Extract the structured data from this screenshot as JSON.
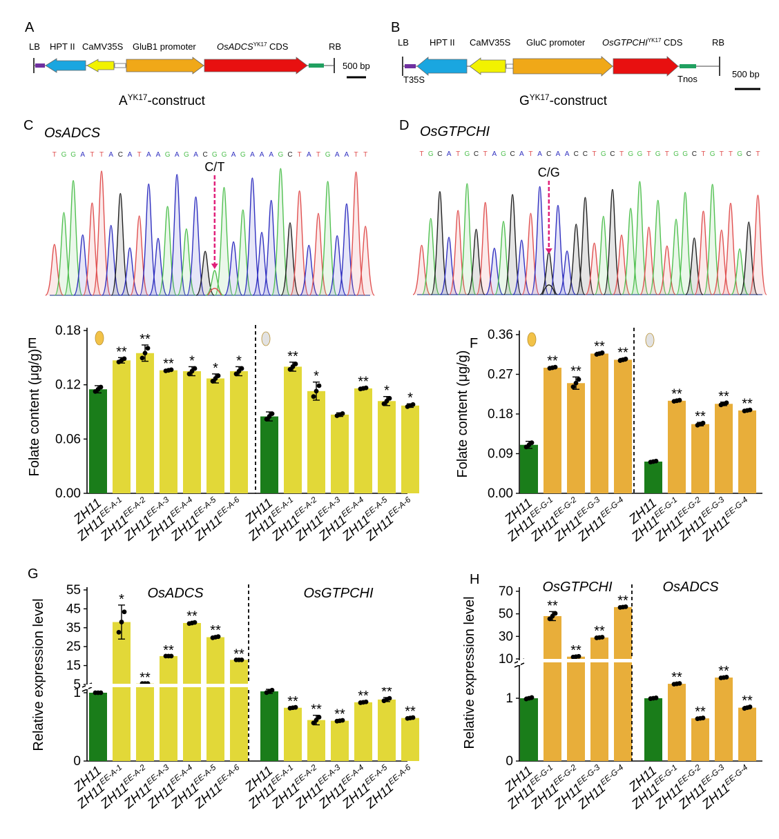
{
  "colors": {
    "ctrl": "#1a7d1a",
    "yellowBar": "#e2d838",
    "orangeBar": "#e8ae3a",
    "hpt": "#1aa6e0",
    "camv": "#f2f200",
    "promoter": "#f0a818",
    "cds": "#e81010",
    "lbStub": "#7030a0",
    "rbStub": "#20a060",
    "traceG": "#50c050",
    "traceA": "#3030c0",
    "traceT": "#e05050",
    "traceC": "#202020",
    "arrow": "#e0207a"
  },
  "panels": {
    "A": {
      "letter": "A",
      "labels": [
        "LB",
        "HPT II",
        "CaMV35S",
        "GluB1 promoter",
        "OsADCS",
        "YK17",
        "CDS",
        "RB"
      ],
      "scale": "500 bp",
      "title_prefix": "A",
      "title_sup": "YK17",
      "title_suffix": "-construct"
    },
    "B": {
      "letter": "B",
      "labels": [
        "LB",
        "HPT II",
        "CaMV35S",
        "GluC promoter",
        "OsGTPCHI",
        "YK17",
        "CDS",
        "RB",
        "T35S",
        "Tnos"
      ],
      "scale": "500 bp",
      "title_prefix": "G",
      "title_sup": "YK17",
      "title_suffix": "-construct"
    },
    "C": {
      "letter": "C",
      "gene": "OsADCS",
      "sequence": "TGGATTACATAAGAGACGGAGAAAGCTATGAATT",
      "mutation": "C/T"
    },
    "D": {
      "letter": "D",
      "gene": "OsGTPCHI",
      "sequence": "TGCATGCTAGCATACAACCTGCTGGTGTGGCTGTTGCT",
      "mutation": "C/G"
    },
    "E": {
      "letter": "E"
    },
    "F": {
      "letter": "F"
    },
    "G": {
      "letter": "G"
    },
    "H": {
      "letter": "H"
    }
  },
  "chart_data": [
    {
      "panel": "E",
      "type": "bar",
      "ylabel": "Folate content (μg/g)",
      "ylim": [
        0,
        0.18
      ],
      "yticks": [
        "0.00",
        "0.06",
        "0.12",
        "0.18"
      ],
      "groups": [
        {
          "categories": [
            "ZH11",
            "ZH11|EE-A-1",
            "ZH11|EE-A-2",
            "ZH11|EE-A-3",
            "ZH11|EE-A-4",
            "ZH11|EE-A-5",
            "ZH11|EE-A-6"
          ],
          "values": [
            0.115,
            0.147,
            0.155,
            0.136,
            0.135,
            0.127,
            0.135
          ],
          "errors": [
            0.004,
            0.003,
            0.009,
            0.001,
            0.005,
            0.005,
            0.005
          ],
          "significance": [
            "",
            "**",
            "**",
            "**",
            "*",
            "*",
            "*"
          ]
        },
        {
          "categories": [
            "ZH11",
            "ZH11|EE-A-1",
            "ZH11|EE-A-2",
            "ZH11|EE-A-3",
            "ZH11|EE-A-4",
            "ZH11|EE-A-5",
            "ZH11|EE-A-6"
          ],
          "values": [
            0.085,
            0.14,
            0.113,
            0.087,
            0.116,
            0.102,
            0.097
          ],
          "errors": [
            0.005,
            0.005,
            0.01,
            0.002,
            0.001,
            0.005,
            0.002
          ],
          "significance": [
            "",
            "**",
            "*",
            "",
            "**",
            "*",
            "*"
          ]
        }
      ]
    },
    {
      "panel": "F",
      "type": "bar",
      "ylabel": "Folate content (μg/g)",
      "ylim": [
        0,
        0.36
      ],
      "yticks": [
        "0.00",
        "0.09",
        "0.18",
        "0.27",
        "0.36"
      ],
      "groups": [
        {
          "categories": [
            "ZH11",
            "ZH11|EE-G-1",
            "ZH11|EE-G-2",
            "ZH11|EE-G-3",
            "ZH11|EE-G-4"
          ],
          "values": [
            0.11,
            0.285,
            0.25,
            0.317,
            0.303
          ],
          "errors": [
            0.008,
            0.002,
            0.014,
            0.003,
            0.003
          ],
          "significance": [
            "",
            "**",
            "**",
            "**",
            "**"
          ]
        },
        {
          "categories": [
            "ZH11",
            "ZH11|EE-G-1",
            "ZH11|EE-G-2",
            "ZH11|EE-G-3",
            "ZH11|EE-G-4"
          ],
          "values": [
            0.072,
            0.21,
            0.157,
            0.203,
            0.188
          ],
          "errors": [
            0.002,
            0.002,
            0.004,
            0.004,
            0.002
          ],
          "significance": [
            "",
            "**",
            "**",
            "**",
            "**"
          ]
        }
      ]
    },
    {
      "panel": "G",
      "type": "bar",
      "ylabel": "Relative expression level",
      "broken_axis": true,
      "yticks": [
        "0",
        "1",
        "5",
        "15",
        "25",
        "35",
        "45",
        "55"
      ],
      "groups": [
        {
          "title": "OsADCS",
          "categories": [
            "ZH11",
            "ZH11|EE-A-1",
            "ZH11|EE-A-2",
            "ZH11|EE-A-3",
            "ZH11|EE-A-4",
            "ZH11|EE-A-5",
            "ZH11|EE-A-6"
          ],
          "values": [
            1.0,
            38,
            5.5,
            20,
            37.5,
            30,
            18
          ],
          "errors": [
            0,
            9,
            0,
            0,
            0.5,
            0.5,
            0
          ],
          "significance": [
            "",
            "*",
            "**",
            "**",
            "**",
            "**",
            "**"
          ]
        },
        {
          "title": "OsGTPCHI",
          "categories": [
            "ZH11",
            "ZH11|EE-A-1",
            "ZH11|EE-A-2",
            "ZH11|EE-A-3",
            "ZH11|EE-A-4",
            "ZH11|EE-A-5",
            "ZH11|EE-A-6"
          ],
          "values": [
            1.02,
            0.78,
            0.6,
            0.59,
            0.86,
            0.9,
            0.63
          ],
          "errors": [
            0.03,
            0.01,
            0.07,
            0.01,
            0.01,
            0.03,
            0.01
          ],
          "significance": [
            "",
            "**",
            "**",
            "**",
            "**",
            "**",
            "**"
          ]
        }
      ]
    },
    {
      "panel": "H",
      "type": "bar",
      "ylabel": "Relative expression level",
      "broken_axis": true,
      "yticks": [
        "0",
        "1",
        "10",
        "30",
        "50",
        "70"
      ],
      "groups": [
        {
          "title": "OsGTPCHI",
          "categories": [
            "ZH11",
            "ZH11|EE-G-1",
            "ZH11|EE-G-2",
            "ZH11|EE-G-3",
            "ZH11|EE-G-4"
          ],
          "values": [
            1.0,
            48,
            12,
            29,
            56
          ],
          "errors": [
            0.02,
            4,
            0.5,
            0.5,
            0.5
          ],
          "significance": [
            "",
            "**",
            "**",
            "**",
            "**"
          ]
        },
        {
          "title": "OsADCS",
          "categories": [
            "ZH11",
            "ZH11|EE-G-1",
            "ZH11|EE-G-2",
            "ZH11|EE-G-3",
            "ZH11|EE-G-4"
          ],
          "values": [
            1.0,
            1.23,
            0.68,
            1.33,
            0.85
          ],
          "errors": [
            0.01,
            0.01,
            0.01,
            0.01,
            0.02
          ],
          "significance": [
            "",
            "**",
            "**",
            "**",
            "**"
          ]
        }
      ]
    }
  ]
}
